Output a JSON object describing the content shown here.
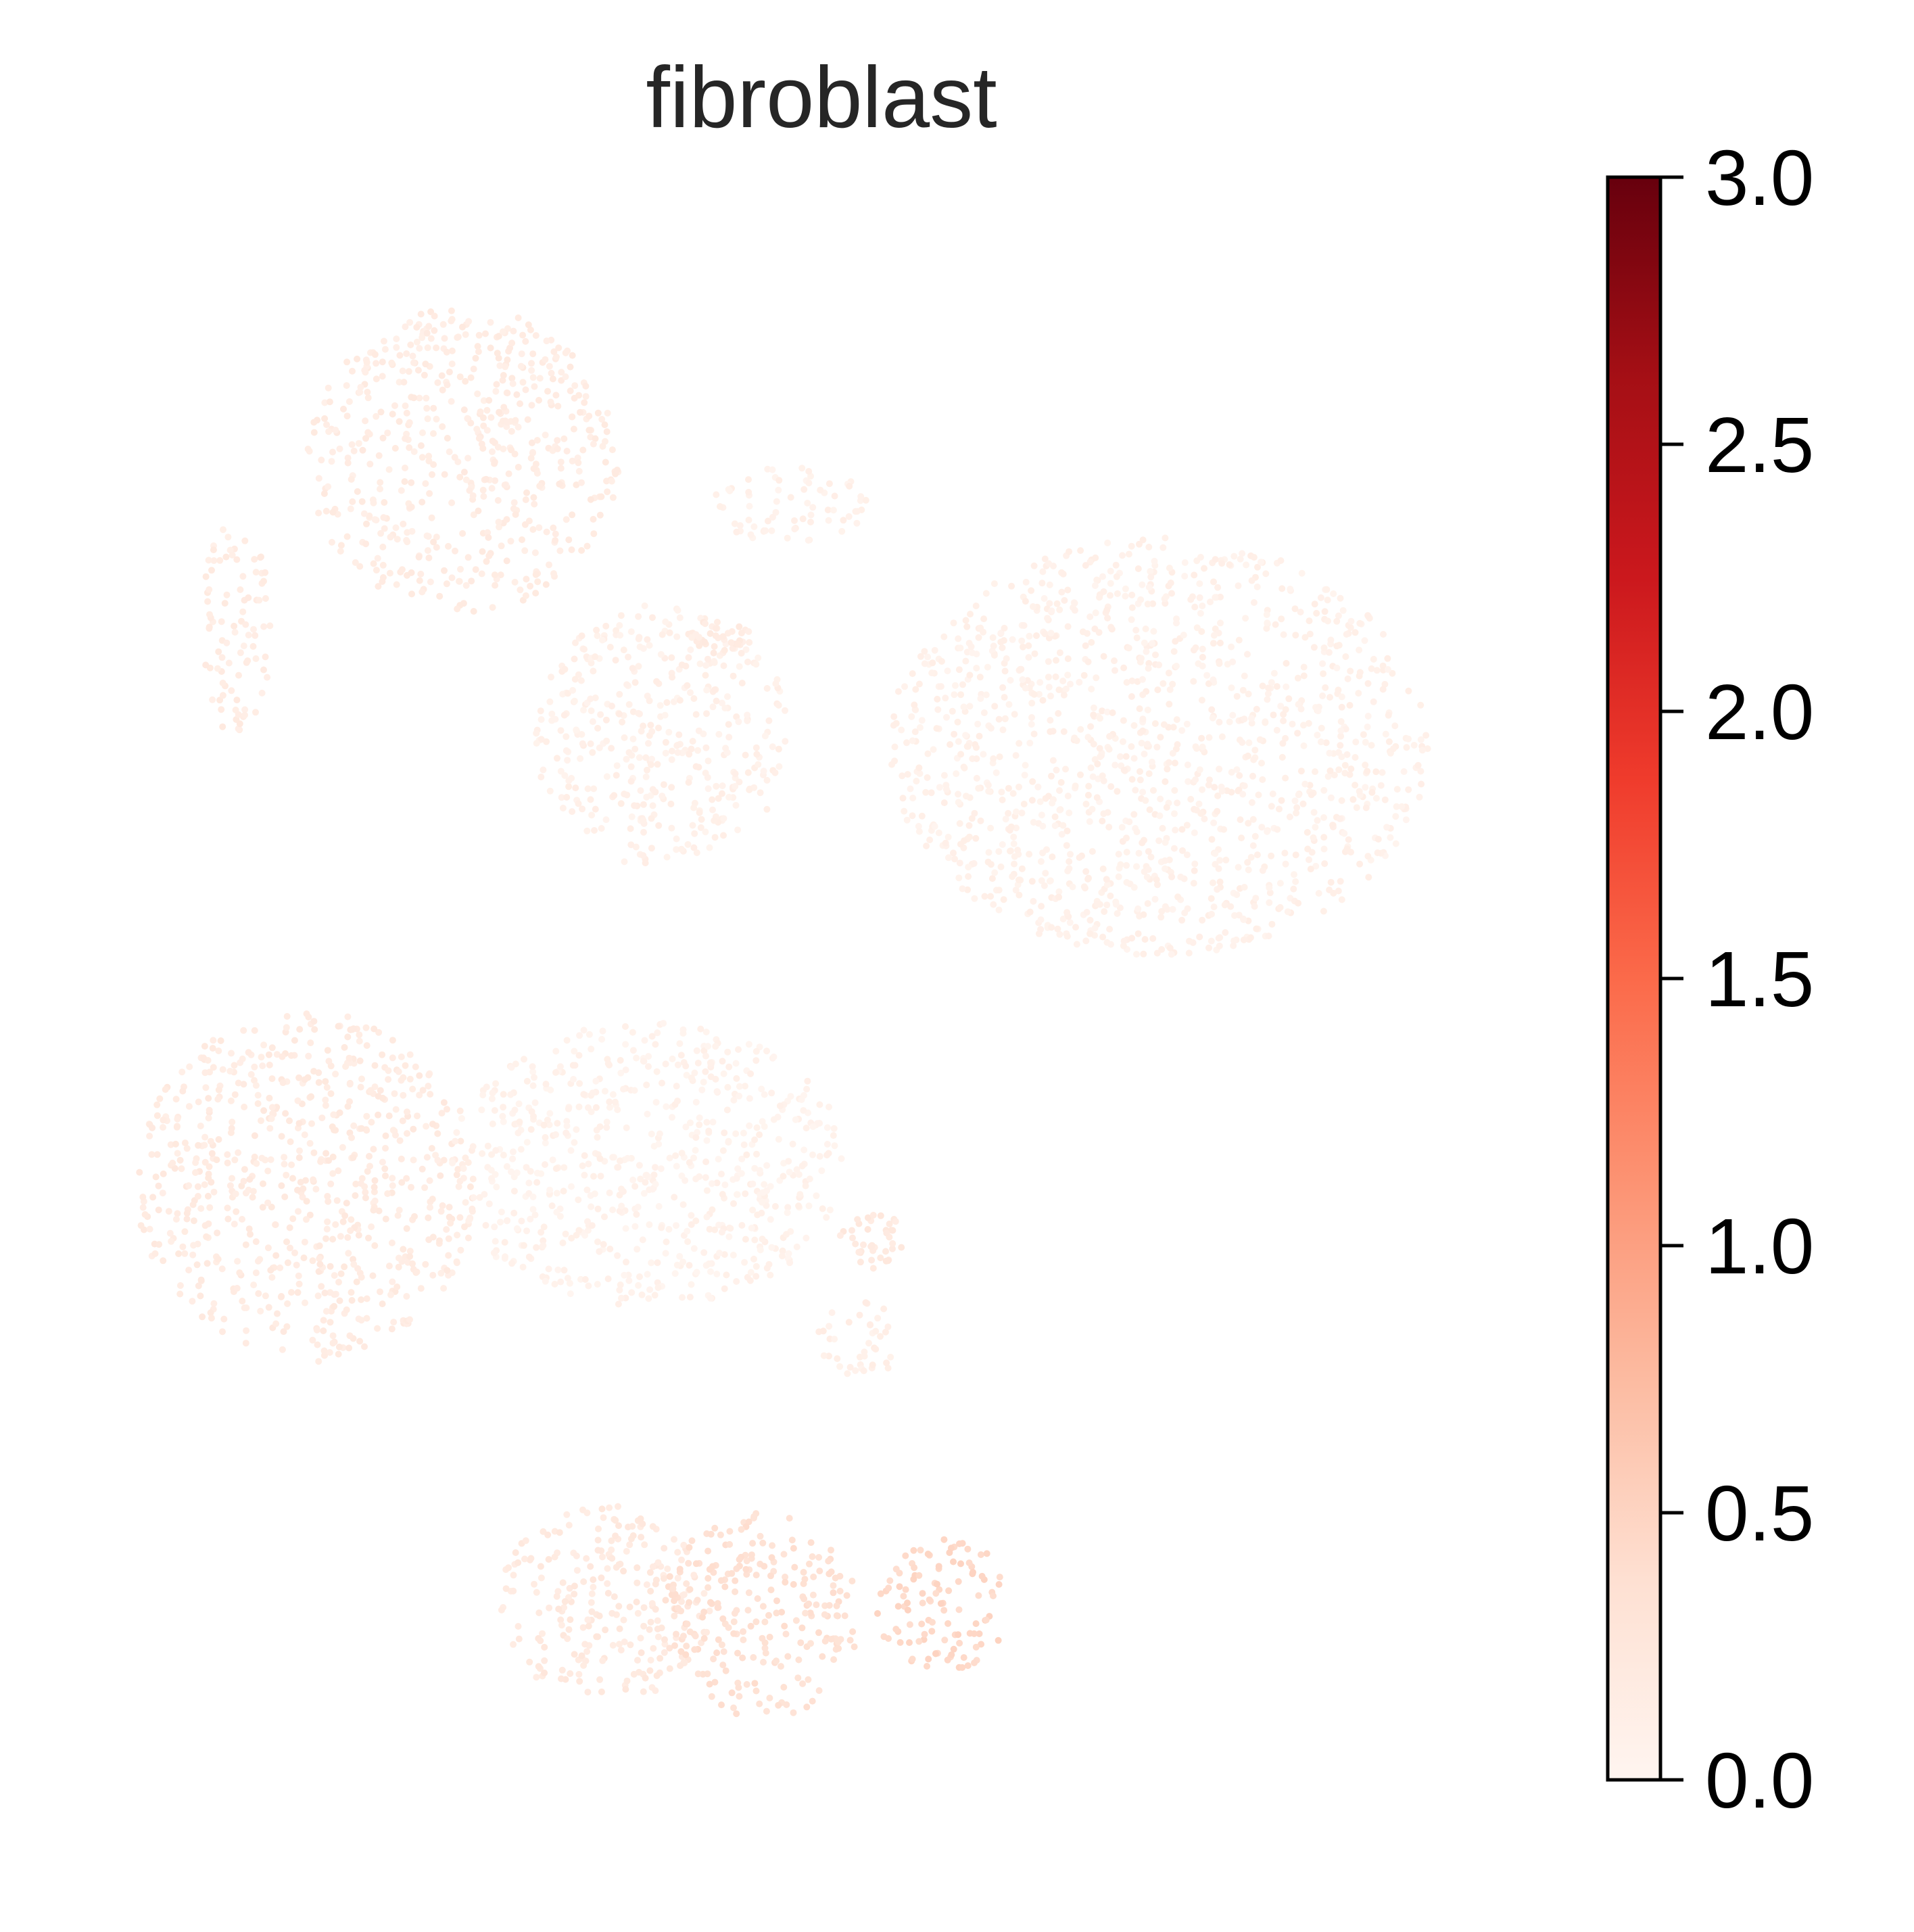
{
  "chart_data": {
    "type": "scatter",
    "title": "fibroblast",
    "xlabel": "",
    "ylabel": "",
    "grid": false,
    "axes_visible": false,
    "colormap": {
      "name": "Reds",
      "stops": [
        "#fff5f0",
        "#fee0d2",
        "#fcbba1",
        "#fc9272",
        "#fb6a4a",
        "#ef3b2c",
        "#cb181d",
        "#a50f15",
        "#67000d"
      ]
    },
    "colorbar": {
      "min": 0.0,
      "max": 3.0,
      "ticks": [
        0.0,
        0.5,
        1.0,
        1.5,
        2.0,
        2.5,
        3.0
      ],
      "tick_labels": [
        "0.0",
        "0.5",
        "1.0",
        "1.5",
        "2.0",
        "2.5",
        "3.0"
      ],
      "placement": "right"
    },
    "clusters": [
      {
        "x": 0.0,
        "y": 5.5,
        "rx": 0.25,
        "ry": 1.0,
        "value": 0.15
      },
      {
        "x": 1.6,
        "y": 7.0,
        "rx": 1.1,
        "ry": 1.4,
        "value": 0.15
      },
      {
        "x": 3.0,
        "y": 4.5,
        "rx": 0.9,
        "ry": 1.2,
        "value": 0.08
      },
      {
        "x": 6.5,
        "y": 4.4,
        "rx": 1.9,
        "ry": 1.9,
        "value": 0.07
      },
      {
        "x": 0.5,
        "y": 0.4,
        "rx": 1.2,
        "ry": 1.6,
        "value": 0.17
      },
      {
        "x": 2.9,
        "y": 0.6,
        "rx": 1.4,
        "ry": 1.3,
        "value": 0.05
      },
      {
        "x": 2.6,
        "y": -3.4,
        "rx": 0.75,
        "ry": 0.9,
        "value": 0.2
      },
      {
        "x": 3.7,
        "y": -3.5,
        "rx": 0.7,
        "ry": 0.95,
        "value": 0.35
      },
      {
        "x": 5.0,
        "y": -3.4,
        "rx": 0.5,
        "ry": 0.6,
        "value": 0.45
      },
      {
        "x": 3.9,
        "y": 6.6,
        "rx": 0.55,
        "ry": 0.35,
        "value": 0.07
      },
      {
        "x": 3.4,
        "y": 5.4,
        "rx": 0.25,
        "ry": 0.15,
        "value": 0.15
      },
      {
        "x": 4.5,
        "y": -0.1,
        "rx": 0.25,
        "ry": 0.25,
        "value": 0.2
      },
      {
        "x": 4.4,
        "y": -1.0,
        "rx": 0.3,
        "ry": 0.35,
        "value": 0.1
      }
    ]
  }
}
